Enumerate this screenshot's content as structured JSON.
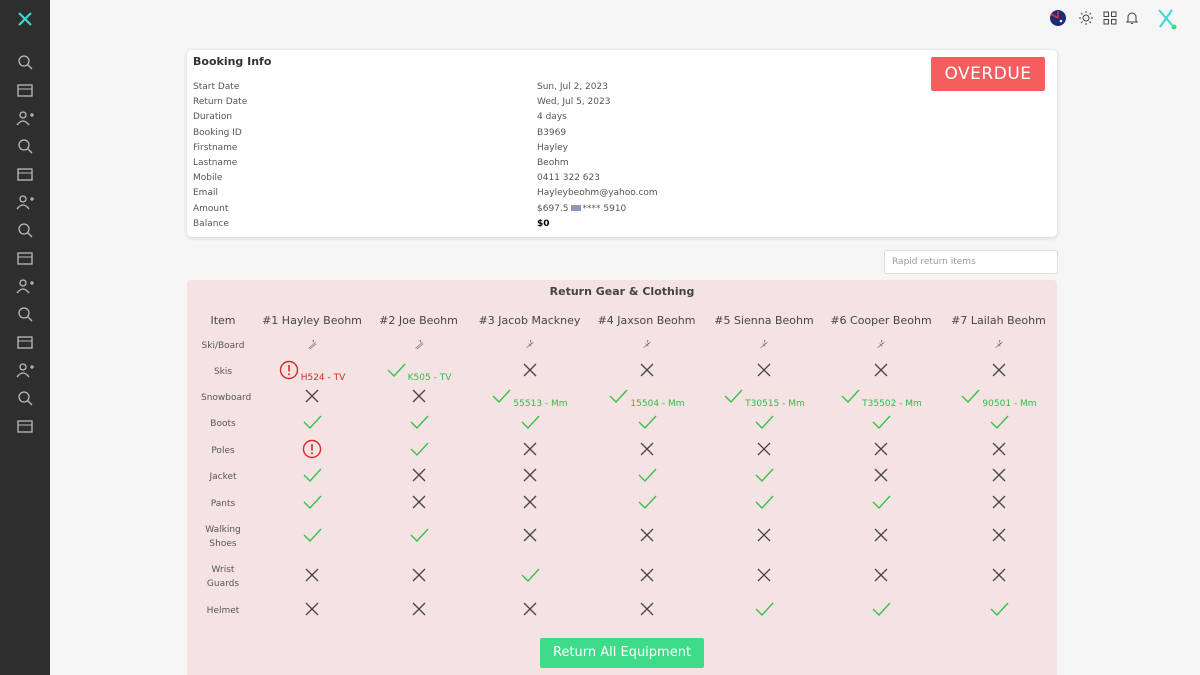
{
  "booking_info": {
    "title": "Booking Info",
    "status": "OVERDUE",
    "fields": [
      {
        "label": "Start Date",
        "value": "Sun, Jul 2, 2023"
      },
      {
        "label": "Return Date",
        "value": "Wed, Jul 5, 2023"
      },
      {
        "label": "Duration",
        "value": "4 days"
      },
      {
        "label": "Booking ID",
        "value": "B3969"
      },
      {
        "label": "Firstname",
        "value": "Hayley"
      },
      {
        "label": "Lastname",
        "value": "Beohm"
      },
      {
        "label": "Mobile",
        "value": "0411 322 623"
      },
      {
        "label": "Email",
        "value": "Hayleybeohm@yahoo.com"
      },
      {
        "label": "Amount",
        "value": "$697.5",
        "card_number": "**** 5910"
      },
      {
        "label": "Balance",
        "value": "$0",
        "emphasis": true
      }
    ]
  },
  "rapid_return": {
    "placeholder": "Rapid return items"
  },
  "return_table": {
    "title": "Return Gear & Clothing",
    "header": [
      "Item",
      "#1 Hayley Beohm",
      "#2 Joe Beohm",
      "#3 Jacob Mackney",
      "#4 Jaxson Beohm",
      "#5 Sienna Beohm",
      "#6 Cooper Beohm",
      "#7 Lailah Beohm"
    ],
    "rows": [
      {
        "item": "Ski/Board",
        "cells": [
          {
            "status": "ski"
          },
          {
            "status": "ski"
          },
          {
            "status": "board"
          },
          {
            "status": "board"
          },
          {
            "status": "board"
          },
          {
            "status": "board"
          },
          {
            "status": "board"
          }
        ]
      },
      {
        "item": "Skis",
        "cells": [
          {
            "status": "alert",
            "code": "H524 - TV"
          },
          {
            "status": "check",
            "code": "K505 - TV"
          },
          {
            "status": "cross"
          },
          {
            "status": "cross"
          },
          {
            "status": "cross"
          },
          {
            "status": "cross"
          },
          {
            "status": "cross"
          }
        ]
      },
      {
        "item": "Snowboard",
        "cells": [
          {
            "status": "cross"
          },
          {
            "status": "cross"
          },
          {
            "status": "check",
            "code": "55513 - Mm"
          },
          {
            "status": "check",
            "code": "15504 - Mm"
          },
          {
            "status": "check",
            "code": "T30515 - Mm"
          },
          {
            "status": "check",
            "code": "T35502 - Mm"
          },
          {
            "status": "check",
            "code": "90501 - Mm"
          }
        ]
      },
      {
        "item": "Boots",
        "cells": [
          {
            "status": "check"
          },
          {
            "status": "check"
          },
          {
            "status": "check"
          },
          {
            "status": "check"
          },
          {
            "status": "check"
          },
          {
            "status": "check"
          },
          {
            "status": "check"
          }
        ]
      },
      {
        "item": "Poles",
        "cells": [
          {
            "status": "alert"
          },
          {
            "status": "check"
          },
          {
            "status": "cross"
          },
          {
            "status": "cross"
          },
          {
            "status": "cross"
          },
          {
            "status": "cross"
          },
          {
            "status": "cross"
          }
        ]
      },
      {
        "item": "Jacket",
        "cells": [
          {
            "status": "check"
          },
          {
            "status": "cross"
          },
          {
            "status": "cross"
          },
          {
            "status": "check"
          },
          {
            "status": "check"
          },
          {
            "status": "cross"
          },
          {
            "status": "cross"
          }
        ]
      },
      {
        "item": "Pants",
        "cells": [
          {
            "status": "check"
          },
          {
            "status": "cross"
          },
          {
            "status": "cross"
          },
          {
            "status": "check"
          },
          {
            "status": "check"
          },
          {
            "status": "check"
          },
          {
            "status": "cross"
          }
        ]
      },
      {
        "item": "Walking Shoes",
        "cells": [
          {
            "status": "check"
          },
          {
            "status": "check"
          },
          {
            "status": "cross"
          },
          {
            "status": "cross"
          },
          {
            "status": "cross"
          },
          {
            "status": "cross"
          },
          {
            "status": "cross"
          }
        ]
      },
      {
        "item": "Wrist Guards",
        "cells": [
          {
            "status": "cross"
          },
          {
            "status": "cross"
          },
          {
            "status": "check"
          },
          {
            "status": "cross"
          },
          {
            "status": "cross"
          },
          {
            "status": "cross"
          },
          {
            "status": "cross"
          }
        ]
      },
      {
        "item": "Helmet",
        "cells": [
          {
            "status": "cross"
          },
          {
            "status": "cross"
          },
          {
            "status": "cross"
          },
          {
            "status": "cross"
          },
          {
            "status": "check"
          },
          {
            "status": "check"
          },
          {
            "status": "check"
          }
        ]
      }
    ],
    "action": "Return All Equipment"
  }
}
